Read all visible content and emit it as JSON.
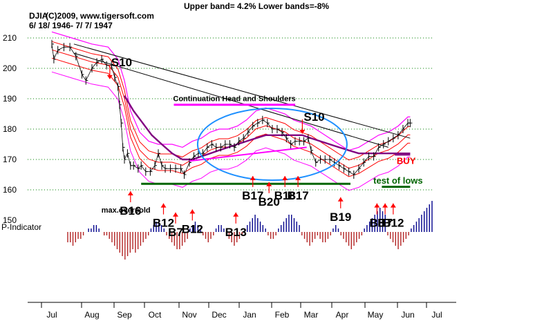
{
  "header": {
    "ticker": "DJIA",
    "copyright": "(C)2009, www.tigersoft.com",
    "date_range": "6/ 18/ 1946- 7/ 7/ 1947",
    "bands": "Upper band= 4.2%  Lower bands=-8%"
  },
  "indicator_label": "P-Indicator",
  "colors": {
    "price": "#000000",
    "upper_band": "#ff00ff",
    "red_band": "#ff0000",
    "ma": "#800080",
    "trend": "#000000",
    "neckline": "#006400",
    "grid": "#008000",
    "indicator_pos": "#00008b",
    "indicator_neg": "#b22222",
    "ellipse": "#1e90ff"
  },
  "chart_data": {
    "type": "line",
    "title": "DJIA",
    "ylim": [
      145,
      213
    ],
    "yticks": [
      150,
      160,
      170,
      180,
      190,
      200,
      210
    ],
    "grid": true,
    "months": [
      "Jul",
      "Aug",
      "Sep",
      "Oct",
      "Nov",
      "Dec",
      "Jan",
      "Feb",
      "Mar",
      "Apr",
      "May",
      "Jun",
      "Jul"
    ],
    "price_points": [
      [
        0,
        208
      ],
      [
        0.05,
        203
      ],
      [
        0.15,
        206
      ],
      [
        0.3,
        207
      ],
      [
        0.45,
        207
      ],
      [
        0.6,
        204
      ],
      [
        0.75,
        198
      ],
      [
        0.85,
        196
      ],
      [
        1.0,
        200
      ],
      [
        1.15,
        202
      ],
      [
        1.3,
        203
      ],
      [
        1.45,
        201
      ],
      [
        1.6,
        201
      ],
      [
        1.7,
        197
      ],
      [
        1.8,
        194
      ],
      [
        1.85,
        188
      ],
      [
        1.9,
        182
      ],
      [
        1.95,
        174
      ],
      [
        2.0,
        170
      ],
      [
        2.1,
        172
      ],
      [
        2.2,
        168
      ],
      [
        2.3,
        168
      ],
      [
        2.45,
        167
      ],
      [
        2.55,
        168
      ],
      [
        2.7,
        166
      ],
      [
        2.85,
        166
      ],
      [
        3.0,
        168
      ],
      [
        3.1,
        172
      ],
      [
        3.2,
        168
      ],
      [
        3.3,
        167
      ],
      [
        3.45,
        167
      ],
      [
        3.6,
        167
      ],
      [
        3.75,
        167
      ],
      [
        3.85,
        165
      ],
      [
        4.0,
        169
      ],
      [
        4.15,
        171
      ],
      [
        4.3,
        172
      ],
      [
        4.45,
        172
      ],
      [
        4.6,
        174
      ],
      [
        4.75,
        175
      ],
      [
        4.9,
        174
      ],
      [
        5.05,
        174
      ],
      [
        5.2,
        175
      ],
      [
        5.35,
        175
      ],
      [
        5.5,
        174
      ],
      [
        5.65,
        176
      ],
      [
        5.8,
        177
      ],
      [
        5.95,
        179
      ],
      [
        6.1,
        181
      ],
      [
        6.25,
        182
      ],
      [
        6.4,
        183
      ],
      [
        6.55,
        182
      ],
      [
        6.7,
        180
      ],
      [
        6.85,
        180
      ],
      [
        7.0,
        179
      ],
      [
        7.15,
        177
      ],
      [
        7.3,
        175
      ],
      [
        7.45,
        176
      ],
      [
        7.6,
        176
      ],
      [
        7.75,
        176
      ],
      [
        7.9,
        177
      ],
      [
        8.0,
        173
      ],
      [
        8.15,
        169
      ],
      [
        8.3,
        170
      ],
      [
        8.45,
        170
      ],
      [
        8.6,
        170
      ],
      [
        8.75,
        169
      ],
      [
        8.9,
        168
      ],
      [
        9.05,
        167
      ],
      [
        9.2,
        166
      ],
      [
        9.35,
        165
      ],
      [
        9.5,
        167
      ],
      [
        9.65,
        169
      ],
      [
        9.8,
        171
      ],
      [
        9.95,
        171
      ],
      [
        10.1,
        174
      ],
      [
        10.25,
        175
      ],
      [
        10.4,
        176
      ],
      [
        10.55,
        177
      ],
      [
        10.7,
        178
      ],
      [
        10.85,
        180
      ],
      [
        11.0,
        182
      ],
      [
        11.08,
        182
      ]
    ],
    "upper_band_points": [
      [
        0,
        212
      ],
      [
        0.5,
        210
      ],
      [
        1.0,
        208
      ],
      [
        1.5,
        207
      ],
      [
        1.8,
        203
      ],
      [
        2.0,
        196
      ],
      [
        2.2,
        186
      ],
      [
        2.5,
        179
      ],
      [
        2.8,
        176
      ],
      [
        3.1,
        175
      ],
      [
        3.5,
        175
      ],
      [
        3.8,
        174
      ],
      [
        4.1,
        176
      ],
      [
        4.4,
        177
      ],
      [
        4.7,
        179
      ],
      [
        5.0,
        180
      ],
      [
        5.3,
        180
      ],
      [
        5.6,
        181
      ],
      [
        5.9,
        183
      ],
      [
        6.2,
        186
      ],
      [
        6.5,
        187
      ],
      [
        6.8,
        186
      ],
      [
        7.1,
        185
      ],
      [
        7.4,
        183
      ],
      [
        7.7,
        182
      ],
      [
        8.0,
        181
      ],
      [
        8.3,
        179
      ],
      [
        8.6,
        177
      ],
      [
        8.9,
        175
      ],
      [
        9.2,
        173
      ],
      [
        9.5,
        174
      ],
      [
        9.8,
        176
      ],
      [
        10.1,
        178
      ],
      [
        10.4,
        179
      ],
      [
        10.7,
        181
      ],
      [
        11.0,
        184
      ],
      [
        11.08,
        184
      ]
    ],
    "ma_points": [
      [
        2.0,
        191
      ],
      [
        2.3,
        186
      ],
      [
        2.6,
        182
      ],
      [
        2.9,
        178
      ],
      [
        3.2,
        175
      ],
      [
        3.5,
        172
      ],
      [
        3.8,
        170
      ],
      [
        4.1,
        170
      ],
      [
        4.4,
        171
      ],
      [
        4.7,
        172
      ],
      [
        5.0,
        173
      ],
      [
        5.3,
        174
      ],
      [
        5.6,
        175
      ],
      [
        5.9,
        176
      ],
      [
        6.2,
        177
      ],
      [
        6.5,
        178
      ],
      [
        6.8,
        178
      ],
      [
        7.1,
        178
      ],
      [
        7.4,
        178
      ],
      [
        7.7,
        178
      ],
      [
        8.0,
        177
      ],
      [
        8.3,
        176
      ],
      [
        8.6,
        175
      ],
      [
        8.9,
        174
      ],
      [
        9.2,
        173
      ],
      [
        9.5,
        172
      ],
      [
        9.8,
        172
      ],
      [
        10.1,
        172
      ],
      [
        10.4,
        172
      ],
      [
        10.7,
        172
      ],
      [
        11.0,
        172
      ],
      [
        11.08,
        172
      ]
    ],
    "trendlines": [
      {
        "from": [
          0.55,
          208
        ],
        "to": [
          11.08,
          177
        ]
      },
      {
        "from": [
          0.55,
          205
        ],
        "to": [
          10.4,
          174
        ]
      }
    ],
    "neckline": {
      "from": [
        2.55,
        162
      ],
      "to": [
        9.25,
        162
      ]
    },
    "test_of_lows_line": {
      "from": [
        10.2,
        161
      ],
      "to": [
        11.08,
        161
      ]
    },
    "head_shoulders_bar": {
      "from": [
        3.55,
        188
      ],
      "to": [
        7.45,
        188
      ]
    },
    "signals": [
      {
        "label": "S10",
        "x": 1.55,
        "y": 198,
        "dir": "down"
      },
      {
        "label": "S10",
        "x": 7.7,
        "y": 180,
        "dir": "down"
      },
      {
        "label": "B16",
        "x": 2.2,
        "y": 155,
        "dir": "up"
      },
      {
        "label": "B12",
        "x": 3.25,
        "y": 151,
        "dir": "up"
      },
      {
        "label": "B7",
        "x": 3.6,
        "y": 148,
        "dir": "up"
      },
      {
        "label": "B12",
        "x": 4.1,
        "y": 149,
        "dir": "up"
      },
      {
        "label": "B13",
        "x": 5.55,
        "y": 148,
        "dir": "up"
      },
      {
        "label": "B17",
        "x": 6.1,
        "y": 160,
        "dir": "up"
      },
      {
        "label": "B20",
        "x": 6.6,
        "y": 158,
        "dir": "up"
      },
      {
        "label": "B18",
        "x": 7.1,
        "y": 160,
        "dir": "up"
      },
      {
        "label": "B17",
        "x": 7.55,
        "y": 160,
        "dir": "up"
      },
      {
        "label": "B19",
        "x": 8.95,
        "y": 153,
        "dir": "up"
      },
      {
        "label": "B8",
        "x": 10.05,
        "y": 151,
        "dir": "up"
      },
      {
        "label": "B7",
        "x": 10.3,
        "y": 151,
        "dir": "up"
      },
      {
        "label": "B12",
        "x": 10.55,
        "y": 151,
        "dir": "up"
      }
    ],
    "annotations": [
      {
        "text": "Continuation Head and Shoulders",
        "x": 5.5,
        "y": 189.2
      },
      {
        "text": "max.oversold",
        "x": 2.05,
        "y": 152.5
      },
      {
        "text": "BUY",
        "x": 10.95,
        "y": 168.5
      },
      {
        "text": "test of lows",
        "x": 10.7,
        "y": 162
      }
    ],
    "p_indicator": [
      -3,
      -3,
      -4,
      -3,
      -2,
      -2,
      -1,
      0,
      1,
      1,
      2,
      2,
      1,
      0,
      -1,
      -1,
      -2,
      -3,
      -4,
      -5,
      -6,
      -7,
      -8,
      -7,
      -6,
      -5,
      -6,
      -5,
      -4,
      -3,
      -2,
      -1,
      1,
      2,
      3,
      3,
      2,
      1,
      -1,
      -2,
      -3,
      -4,
      -5,
      -5,
      -4,
      -3,
      -2,
      1,
      2,
      3,
      2,
      1,
      -1,
      -2,
      -3,
      -2,
      -1,
      1,
      2,
      2,
      1,
      -1,
      -2,
      -3,
      -4,
      -3,
      -2,
      -1,
      1,
      2,
      3,
      4,
      5,
      4,
      3,
      2,
      1,
      -1,
      -2,
      -2,
      -1,
      1,
      2,
      3,
      4,
      5,
      5,
      4,
      3,
      2,
      -1,
      -2,
      -3,
      -4,
      -3,
      -2,
      -1,
      -2,
      -3,
      -3,
      -2,
      -1,
      1,
      2,
      1,
      -1,
      -2,
      -3,
      -4,
      -5,
      -4,
      -3,
      -2,
      -1,
      1,
      2,
      3,
      4,
      5,
      6,
      7,
      6,
      5,
      -1,
      -2,
      -3,
      -4,
      -5,
      -4,
      -3,
      -2,
      -1,
      1,
      2,
      3,
      4,
      5,
      6,
      7,
      8,
      9
    ]
  }
}
